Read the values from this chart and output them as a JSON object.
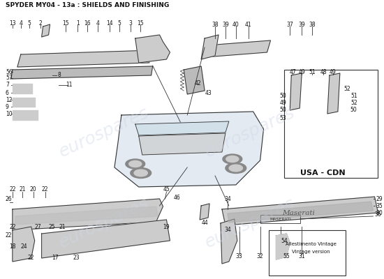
{
  "title": "SPYDER MY04 - 13a : SHIELDS AND FINISHING",
  "bg_color": "#ffffff",
  "watermark_color": "#d0d8e8",
  "line_color": "#333333",
  "label_color": "#111111",
  "box_fill": "#e8e8e8",
  "title_fontsize": 6.5,
  "label_fontsize": 5.5,
  "vintage_text": [
    "Allestimento Vintage",
    "Vintage version"
  ],
  "usa_cdn_text": "USA - CDN"
}
